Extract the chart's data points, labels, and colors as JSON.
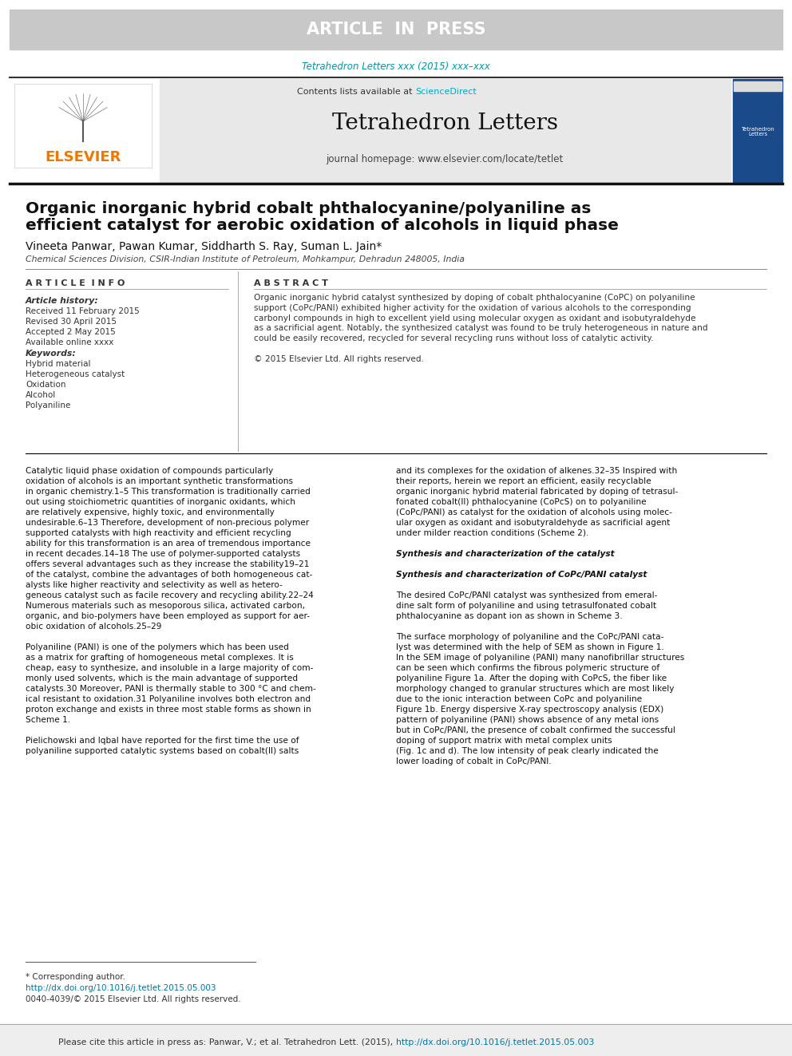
{
  "article_in_press_bg": "#c8c8c8",
  "article_in_press_text": "ARTICLE  IN  PRESS",
  "article_in_press_color": "#ffffff",
  "journal_ref_color": "#0099aa",
  "journal_ref": "Tetrahedron Letters xxx (2015) xxx–xxx",
  "journal_name": "Tetrahedron Letters",
  "journal_homepage": "journal homepage: www.elsevier.com/locate/tetlet",
  "contents_text": "Contents lists available at ",
  "sciencedirect_text": "ScienceDirect",
  "sciencedirect_color": "#00aacc",
  "elsevier_color": "#f07800",
  "paper_title_line1": "Organic inorganic hybrid cobalt phthalocyanine/polyaniline as",
  "paper_title_line2": "efficient catalyst for aerobic oxidation of alcohols in liquid phase",
  "authors": "Vineeta Panwar, Pawan Kumar, Siddharth S. Ray, Suman L. Jain",
  "affiliation": "Chemical Sciences Division, CSIR-Indian Institute of Petroleum, Mohkampur, Dehradun 248005, India",
  "article_info_header": "A R T I C L E  I N F O",
  "abstract_header": "A B S T R A C T",
  "article_history_label": "Article history:",
  "received": "Received 11 February 2015",
  "revised": "Revised 30 April 2015",
  "accepted": "Accepted 2 May 2015",
  "available": "Available online xxxx",
  "keywords_label": "Keywords:",
  "keywords": [
    "Hybrid material",
    "Heterogeneous catalyst",
    "Oxidation",
    "Alcohol",
    "Polyaniline"
  ],
  "abstract_lines": [
    "Organic inorganic hybrid catalyst synthesized by doping of cobalt phthalocyanine (CoPC) on polyaniline",
    "support (CoPc/PANI) exhibited higher activity for the oxidation of various alcohols to the corresponding",
    "carbonyl compounds in high to excellent yield using molecular oxygen as oxidant and isobutyraldehyde",
    "as a sacrificial agent. Notably, the synthesized catalyst was found to be truly heterogeneous in nature and",
    "could be easily recovered, recycled for several recycling runs without loss of catalytic activity.",
    "",
    "© 2015 Elsevier Ltd. All rights reserved."
  ],
  "body_col1_lines": [
    "Catalytic liquid phase oxidation of compounds particularly",
    "oxidation of alcohols is an important synthetic transformations",
    "in organic chemistry.1–5 This transformation is traditionally carried",
    "out using stoichiometric quantities of inorganic oxidants, which",
    "are relatively expensive, highly toxic, and environmentally",
    "undesirable.6–13 Therefore, development of non-precious polymer",
    "supported catalysts with high reactivity and efficient recycling",
    "ability for this transformation is an area of tremendous importance",
    "in recent decades.14–18 The use of polymer-supported catalysts",
    "offers several advantages such as they increase the stability19–21",
    "of the catalyst, combine the advantages of both homogeneous cat-",
    "alysts like higher reactivity and selectivity as well as hetero-",
    "geneous catalyst such as facile recovery and recycling ability.22–24",
    "Numerous materials such as mesoporous silica, activated carbon,",
    "organic, and bio-polymers have been employed as support for aer-",
    "obic oxidation of alcohols.25–29",
    "",
    "Polyaniline (PANI) is one of the polymers which has been used",
    "as a matrix for grafting of homogeneous metal complexes. It is",
    "cheap, easy to synthesize, and insoluble in a large majority of com-",
    "monly used solvents, which is the main advantage of supported",
    "catalysts.30 Moreover, PANI is thermally stable to 300 °C and chem-",
    "ical resistant to oxidation.31 Polyaniline involves both electron and",
    "proton exchange and exists in three most stable forms as shown in",
    "Scheme 1.",
    "",
    "Pielichowski and Iqbal have reported for the first time the use of",
    "polyaniline supported catalytic systems based on cobalt(II) salts"
  ],
  "body_col2_lines": [
    "and its complexes for the oxidation of alkenes.32–35 Inspired with",
    "their reports, herein we report an efficient, easily recyclable",
    "organic inorganic hybrid material fabricated by doping of tetrasul-",
    "fonated cobalt(II) phthalocyanine (CoPcS) on to polyaniline",
    "(CoPc/PANI) as catalyst for the oxidation of alcohols using molec-",
    "ular oxygen as oxidant and isobutyraldehyde as sacrificial agent",
    "under milder reaction conditions (Scheme 2).",
    "",
    "Synthesis and characterization of the catalyst",
    "",
    "Synthesis and characterization of CoPc/PANI catalyst",
    "",
    "The desired CoPc/PANI catalyst was synthesized from emeral-",
    "dine salt form of polyaniline and using tetrasulfonated cobalt",
    "phthalocyanine as dopant ion as shown in Scheme 3.",
    "",
    "The surface morphology of polyaniline and the CoPc/PANI cata-",
    "lyst was determined with the help of SEM as shown in Figure 1.",
    "In the SEM image of polyaniline (PANI) many nanofibrillar structures",
    "can be seen which confirms the fibrous polymeric structure of",
    "polyaniline Figure 1a. After the doping with CoPcS, the fiber like",
    "morphology changed to granular structures which are most likely",
    "due to the ionic interaction between CoPc and polyaniline",
    "Figure 1b. Energy dispersive X-ray spectroscopy analysis (EDX)",
    "pattern of polyaniline (PANI) shows absence of any metal ions",
    "but in CoPc/PANI, the presence of cobalt confirmed the successful",
    "doping of support matrix with metal complex units",
    "(Fig. 1c and d). The low intensity of peak clearly indicated the",
    "lower loading of cobalt in CoPc/PANI."
  ],
  "section_headings": [
    "Synthesis and characterization of the catalyst",
    "Synthesis and characterization of CoPc/PANI catalyst"
  ],
  "footnote_star": "* Corresponding author.",
  "doi_text": "http://dx.doi.org/10.1016/j.tetlet.2015.05.003",
  "doi_color": "#0077aa",
  "issn_text": "0040-4039/© 2015 Elsevier Ltd. All rights reserved.",
  "cite_prefix": "Please cite this article in press as: Panwar, V.; et al. Tetrahedron Lett. (2015), ",
  "cite_url": "http://dx.doi.org/10.1016/j.tetlet.2015.05.003",
  "cite_link_color": "#0077aa",
  "bg_color": "#ffffff",
  "header_bg": "#c8c8c8",
  "box_bg": "#e8e8e8"
}
